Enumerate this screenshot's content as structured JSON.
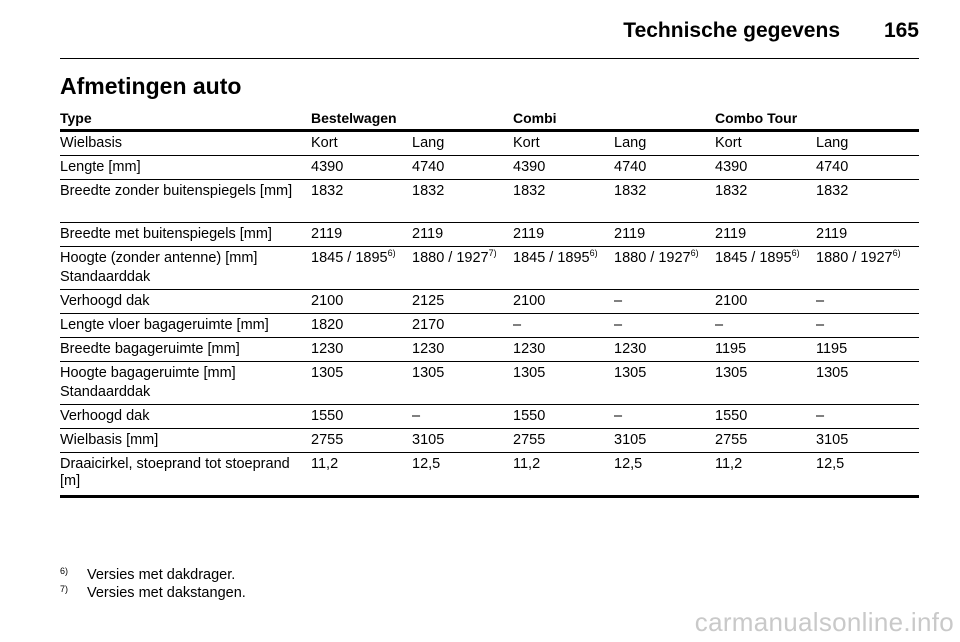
{
  "header": {
    "title": "Technische gegevens",
    "page_number": "165"
  },
  "section_title": "Afmetingen auto",
  "table": {
    "headers": [
      "Type",
      "Bestelwagen",
      "",
      "Combi",
      "",
      "Combo Tour",
      ""
    ],
    "rows": [
      {
        "label": "Wielbasis",
        "cells": [
          [
            "Kort",
            ""
          ],
          [
            "Lang",
            ""
          ],
          [
            "Kort",
            ""
          ],
          [
            "Lang",
            ""
          ],
          [
            "Kort",
            ""
          ],
          [
            "Lang",
            ""
          ]
        ]
      },
      {
        "label": "Lengte [mm]",
        "cells": [
          [
            "4390",
            ""
          ],
          [
            "4740",
            ""
          ],
          [
            "4390",
            ""
          ],
          [
            "4740",
            ""
          ],
          [
            "4390",
            ""
          ],
          [
            "4740",
            ""
          ]
        ]
      },
      {
        "label": "Breedte zonder buitenspiegels [mm]",
        "cells": [
          [
            "1832",
            ""
          ],
          [
            "1832",
            ""
          ],
          [
            "1832",
            ""
          ],
          [
            "1832",
            ""
          ],
          [
            "1832",
            ""
          ],
          [
            "1832",
            ""
          ]
        ],
        "tall": true
      },
      {
        "label": "Breedte met buitenspiegels [mm]",
        "cells": [
          [
            "2119",
            ""
          ],
          [
            "2119",
            ""
          ],
          [
            "2119",
            ""
          ],
          [
            "2119",
            ""
          ],
          [
            "2119",
            ""
          ],
          [
            "2119",
            ""
          ]
        ]
      },
      {
        "label": "Hoogte (zonder antenne) [mm]",
        "sublabel": "Standaarddak",
        "cells": [
          [
            "1845 / 1895",
            "6)"
          ],
          [
            "1880 / 1927",
            "7)"
          ],
          [
            "1845 / 1895",
            "6)"
          ],
          [
            "1880 / 1927",
            "6)"
          ],
          [
            "1845 / 1895",
            "6)"
          ],
          [
            "1880 / 1927",
            "6)"
          ]
        ],
        "tall": true
      },
      {
        "label": "Verhoogd dak",
        "cells": [
          [
            "2100",
            ""
          ],
          [
            "2125",
            ""
          ],
          [
            "2100",
            ""
          ],
          [
            "–",
            ""
          ],
          [
            "2100",
            ""
          ],
          [
            "–",
            ""
          ]
        ]
      },
      {
        "label": "Lengte vloer bagageruimte [mm]",
        "cells": [
          [
            "1820",
            ""
          ],
          [
            "2170",
            ""
          ],
          [
            "–",
            ""
          ],
          [
            "–",
            ""
          ],
          [
            "–",
            ""
          ],
          [
            "–",
            ""
          ]
        ]
      },
      {
        "label": "Breedte bagageruimte [mm]",
        "cells": [
          [
            "1230",
            ""
          ],
          [
            "1230",
            ""
          ],
          [
            "1230",
            ""
          ],
          [
            "1230",
            ""
          ],
          [
            "1195",
            ""
          ],
          [
            "1195",
            ""
          ]
        ]
      },
      {
        "label": "Hoogte bagageruimte [mm]",
        "sublabel": "Standaarddak",
        "cells": [
          [
            "1305",
            ""
          ],
          [
            "1305",
            ""
          ],
          [
            "1305",
            ""
          ],
          [
            "1305",
            ""
          ],
          [
            "1305",
            ""
          ],
          [
            "1305",
            ""
          ]
        ],
        "tall": true
      },
      {
        "label": "Verhoogd dak",
        "cells": [
          [
            "1550",
            ""
          ],
          [
            "–",
            ""
          ],
          [
            "1550",
            ""
          ],
          [
            "–",
            ""
          ],
          [
            "1550",
            ""
          ],
          [
            "–",
            ""
          ]
        ]
      },
      {
        "label": "Wielbasis [mm]",
        "cells": [
          [
            "2755",
            ""
          ],
          [
            "3105",
            ""
          ],
          [
            "2755",
            ""
          ],
          [
            "3105",
            ""
          ],
          [
            "2755",
            ""
          ],
          [
            "3105",
            ""
          ]
        ]
      },
      {
        "label": "Draaicirkel, stoeprand tot stoeprand [m]",
        "cells": [
          [
            "11,2",
            ""
          ],
          [
            "12,5",
            ""
          ],
          [
            "11,2",
            ""
          ],
          [
            "12,5",
            ""
          ],
          [
            "11,2",
            ""
          ],
          [
            "12,5",
            ""
          ]
        ],
        "tall": true
      }
    ]
  },
  "footnotes": [
    {
      "mark": "6)",
      "text": "Versies met dakdrager."
    },
    {
      "mark": "7)",
      "text": "Versies met dakstangen."
    }
  ],
  "watermark": "carmanualsonline.info"
}
